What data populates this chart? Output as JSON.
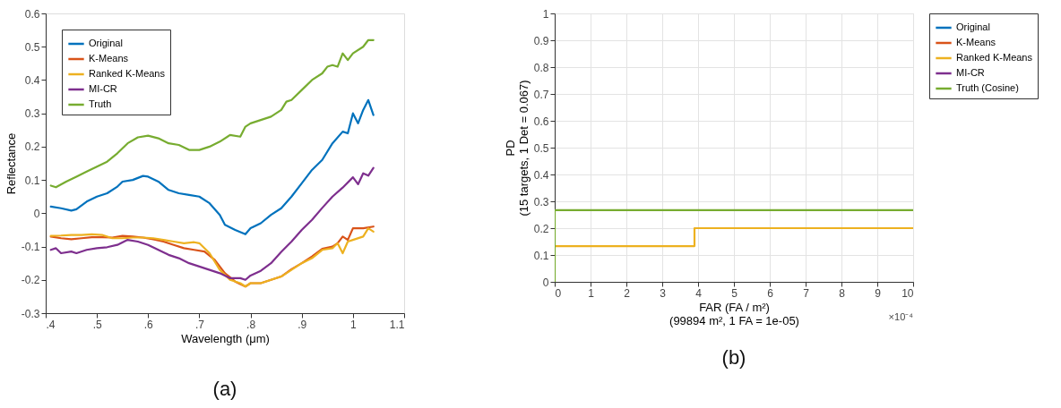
{
  "chart_data": [
    {
      "type": "line",
      "xlabel": "Wavelength (μm)",
      "ylabel": "Reflectance",
      "annotations": [
        "(a)"
      ],
      "xlim": [
        0.4,
        1.1
      ],
      "xticks": [
        {
          "value": 0.4,
          "label": ".4"
        },
        {
          "value": 0.5,
          "label": ".5"
        },
        {
          "value": 0.6,
          "label": ".6"
        },
        {
          "value": 0.7,
          "label": ".7"
        },
        {
          "value": 0.8,
          "label": ".8"
        },
        {
          "value": 0.9,
          "label": ".9"
        },
        1,
        1.1
      ],
      "ylim": [
        -0.3,
        0.6
      ],
      "yticks": [
        -0.3,
        -0.2,
        -0.1,
        0,
        0.1,
        0.2,
        0.3,
        0.4,
        0.5,
        0.6
      ],
      "grid": false,
      "legend": "top left",
      "line_style": "solid",
      "series": [
        {
          "name": "Original",
          "color": "#0072bd",
          "x": [
            0.41,
            0.43,
            0.45,
            0.46,
            0.48,
            0.5,
            0.52,
            0.54,
            0.55,
            0.57,
            0.59,
            0.6,
            0.62,
            0.64,
            0.66,
            0.68,
            0.7,
            0.72,
            0.74,
            0.75,
            0.77,
            0.79,
            0.8,
            0.82,
            0.84,
            0.86,
            0.88,
            0.9,
            0.92,
            0.94,
            0.96,
            0.98,
            0.99,
            1.0,
            1.01,
            1.02,
            1.03,
            1.04
          ],
          "values": [
            0.02,
            0.015,
            0.008,
            0.012,
            0.035,
            0.05,
            0.06,
            0.08,
            0.095,
            0.1,
            0.112,
            0.11,
            0.095,
            0.07,
            0.06,
            0.055,
            0.05,
            0.03,
            -0.005,
            -0.035,
            -0.05,
            -0.063,
            -0.045,
            -0.03,
            -0.005,
            0.015,
            0.05,
            0.09,
            0.13,
            0.16,
            0.21,
            0.245,
            0.24,
            0.3,
            0.27,
            0.31,
            0.34,
            0.295
          ]
        },
        {
          "name": "K-Means",
          "color": "#d95319",
          "x": [
            0.41,
            0.43,
            0.45,
            0.47,
            0.49,
            0.51,
            0.53,
            0.55,
            0.57,
            0.59,
            0.61,
            0.63,
            0.65,
            0.67,
            0.69,
            0.71,
            0.73,
            0.75,
            0.77,
            0.79,
            0.8,
            0.82,
            0.84,
            0.86,
            0.88,
            0.9,
            0.92,
            0.94,
            0.96,
            0.97,
            0.98,
            0.99,
            1.0,
            1.02,
            1.04
          ],
          "values": [
            -0.07,
            -0.075,
            -0.078,
            -0.075,
            -0.072,
            -0.072,
            -0.073,
            -0.068,
            -0.07,
            -0.073,
            -0.078,
            -0.085,
            -0.095,
            -0.105,
            -0.11,
            -0.115,
            -0.14,
            -0.18,
            -0.205,
            -0.22,
            -0.21,
            -0.21,
            -0.2,
            -0.19,
            -0.168,
            -0.15,
            -0.13,
            -0.107,
            -0.1,
            -0.09,
            -0.07,
            -0.08,
            -0.045,
            -0.045,
            -0.04
          ]
        },
        {
          "name": "Ranked K-Means",
          "color": "#edb120",
          "x": [
            0.41,
            0.43,
            0.45,
            0.47,
            0.49,
            0.51,
            0.53,
            0.55,
            0.57,
            0.59,
            0.61,
            0.63,
            0.65,
            0.67,
            0.69,
            0.7,
            0.72,
            0.74,
            0.76,
            0.78,
            0.79,
            0.8,
            0.82,
            0.84,
            0.86,
            0.88,
            0.9,
            0.92,
            0.94,
            0.96,
            0.97,
            0.98,
            0.99,
            1.0,
            1.02,
            1.03,
            1.04
          ],
          "values": [
            -0.068,
            -0.067,
            -0.065,
            -0.065,
            -0.063,
            -0.065,
            -0.075,
            -0.075,
            -0.073,
            -0.073,
            -0.075,
            -0.08,
            -0.085,
            -0.09,
            -0.087,
            -0.09,
            -0.12,
            -0.17,
            -0.2,
            -0.21,
            -0.22,
            -0.21,
            -0.21,
            -0.2,
            -0.19,
            -0.17,
            -0.15,
            -0.135,
            -0.11,
            -0.105,
            -0.09,
            -0.12,
            -0.085,
            -0.08,
            -0.07,
            -0.045,
            -0.055
          ]
        },
        {
          "name": "MI-CR",
          "color": "#7e2f8e",
          "x": [
            0.41,
            0.42,
            0.43,
            0.45,
            0.46,
            0.48,
            0.5,
            0.52,
            0.54,
            0.56,
            0.58,
            0.6,
            0.62,
            0.64,
            0.66,
            0.68,
            0.7,
            0.72,
            0.74,
            0.76,
            0.78,
            0.79,
            0.8,
            0.82,
            0.84,
            0.86,
            0.88,
            0.9,
            0.92,
            0.94,
            0.96,
            0.98,
            1.0,
            1.01,
            1.02,
            1.03,
            1.04
          ],
          "values": [
            -0.11,
            -0.105,
            -0.12,
            -0.115,
            -0.12,
            -0.11,
            -0.105,
            -0.102,
            -0.095,
            -0.08,
            -0.085,
            -0.095,
            -0.11,
            -0.125,
            -0.135,
            -0.15,
            -0.16,
            -0.17,
            -0.18,
            -0.195,
            -0.195,
            -0.2,
            -0.187,
            -0.173,
            -0.15,
            -0.116,
            -0.085,
            -0.05,
            -0.02,
            0.016,
            0.05,
            0.077,
            0.108,
            0.087,
            0.12,
            0.113,
            0.136
          ]
        },
        {
          "name": "Truth",
          "color": "#77ac30",
          "x": [
            0.41,
            0.42,
            0.44,
            0.46,
            0.48,
            0.5,
            0.52,
            0.54,
            0.56,
            0.58,
            0.6,
            0.62,
            0.64,
            0.66,
            0.68,
            0.7,
            0.72,
            0.74,
            0.76,
            0.78,
            0.79,
            0.8,
            0.82,
            0.84,
            0.86,
            0.87,
            0.88,
            0.9,
            0.92,
            0.94,
            0.95,
            0.96,
            0.97,
            0.98,
            0.99,
            1.0,
            1.02,
            1.03,
            1.04
          ],
          "values": [
            0.083,
            0.078,
            0.095,
            0.11,
            0.125,
            0.14,
            0.155,
            0.18,
            0.21,
            0.228,
            0.233,
            0.225,
            0.21,
            0.205,
            0.19,
            0.19,
            0.2,
            0.215,
            0.235,
            0.23,
            0.26,
            0.27,
            0.28,
            0.29,
            0.31,
            0.335,
            0.34,
            0.37,
            0.4,
            0.42,
            0.44,
            0.445,
            0.44,
            0.48,
            0.46,
            0.48,
            0.5,
            0.52,
            0.52
          ]
        }
      ]
    },
    {
      "type": "step",
      "xlabel": "FAR (FA / m²)\n(99894 m², 1 FA = 1e-05)",
      "ylabel": "PD\n(15 targets, 1 Det = 0.067)",
      "annotations": [
        "×10⁻⁴",
        "(b)"
      ],
      "xlim": [
        0,
        10
      ],
      "xticks": [
        0,
        1,
        2,
        3,
        4,
        5,
        6,
        7,
        8,
        9,
        10
      ],
      "ylim": [
        0,
        1
      ],
      "yticks": [
        0,
        0.1,
        0.2,
        0.3,
        0.4,
        0.5,
        0.6,
        0.7,
        0.8,
        0.9,
        1
      ],
      "grid": true,
      "legend": "right",
      "line_style": "solid",
      "series": [
        {
          "name": "Original",
          "color": "#0072bd"
        },
        {
          "name": "K-Means",
          "color": "#d95319"
        },
        {
          "name": "Ranked K-Means",
          "color": "#edb120",
          "x": [
            0,
            3.9,
            10
          ],
          "values": [
            0.133,
            0.2,
            0.2
          ]
        },
        {
          "name": "MI-CR",
          "color": "#7e2f8e"
        },
        {
          "name": "Truth (Cosine)",
          "color": "#77ac30",
          "x": [
            0,
            0,
            10
          ],
          "values": [
            0,
            0.267,
            0.267
          ]
        }
      ]
    }
  ]
}
